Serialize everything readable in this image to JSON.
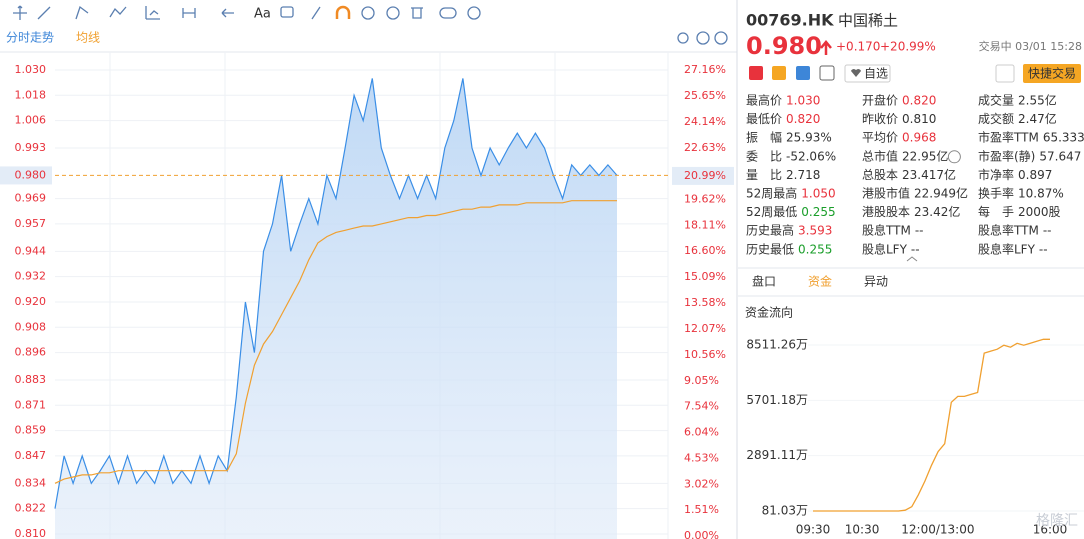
{
  "toolbar": {
    "text_tool": "Aa"
  },
  "tabs": [
    "分时走势",
    "均线"
  ],
  "chart_data": [
    {
      "type": "line",
      "ylim": [
        0.8076,
        1.039
      ],
      "yticks": [
        {
          "value": 1.03,
          "label": "1.030"
        },
        1.018,
        1.006,
        0.993,
        0.969,
        0.957,
        0.944,
        0.932,
        {
          "value": 0.92,
          "label": "0.920"
        },
        0.908,
        0.896,
        0.883,
        0.871,
        0.859,
        0.847,
        0.834,
        0.822,
        {
          "value": 0.81,
          "label": "0.810"
        }
      ],
      "y2lim": [
        -0.17,
        28.27
      ],
      "y2ticks": [
        {
          "value": 27.16,
          "label": "27.16%"
        },
        {
          "value": 25.65,
          "label": "25.65%"
        },
        {
          "value": 24.14,
          "label": "24.14%"
        },
        {
          "value": 22.63,
          "label": "22.63%"
        },
        {
          "value": 19.62,
          "label": "19.62%"
        },
        {
          "value": 18.11,
          "label": "18.11%"
        },
        {
          "value": 16.6,
          "label": "16.60%"
        },
        {
          "value": 15.09,
          "label": "15.09%"
        },
        {
          "value": 13.58,
          "label": "13.58%"
        },
        {
          "value": 12.07,
          "label": "12.07%"
        },
        {
          "value": 10.56,
          "label": "10.56%"
        },
        {
          "value": 9.05,
          "label": "9.05%"
        },
        {
          "value": 7.54,
          "label": "7.54%"
        },
        {
          "value": 6.04,
          "label": "6.04%"
        },
        {
          "value": 4.53,
          "label": "4.53%"
        },
        {
          "value": 3.02,
          "label": "3.02%"
        },
        {
          "value": 1.51,
          "label": "1.51%"
        },
        {
          "value": 0,
          "label": "0.00%"
        }
      ],
      "last": {
        "value": 0.98,
        "label": "0.980"
      },
      "last_pct": {
        "value": 20.99,
        "label": "20.99%"
      },
      "series": [
        {
          "color": "#3a8ee6",
          "values": [
            0.822,
            0.847,
            0.834,
            0.847,
            0.834,
            0.84,
            0.847,
            0.834,
            0.847,
            0.834,
            0.84,
            0.834,
            0.847,
            0.834,
            0.84,
            0.834,
            0.847,
            0.834,
            0.847,
            0.84,
            0.875,
            0.92,
            0.896,
            0.944,
            0.957,
            0.98,
            0.944,
            0.957,
            0.969,
            0.957,
            0.98,
            0.969,
            0.993,
            1.018,
            1.006,
            1.026,
            0.993,
            0.98,
            0.969,
            0.98,
            0.969,
            0.98,
            0.969,
            0.993,
            1.006,
            1.026,
            0.993,
            0.98,
            0.993,
            0.985,
            0.993,
            1.0,
            0.993,
            1.0,
            0.993,
            0.98,
            0.969,
            0.985,
            0.98,
            0.985,
            0.98,
            0.985,
            0.98
          ]
        },
        {
          "color": "#f0a030",
          "values": [
            0.834,
            0.836,
            0.837,
            0.838,
            0.838,
            0.839,
            0.839,
            0.84,
            0.84,
            0.84,
            0.84,
            0.84,
            0.84,
            0.84,
            0.84,
            0.84,
            0.84,
            0.84,
            0.84,
            0.84,
            0.848,
            0.872,
            0.89,
            0.9,
            0.906,
            0.914,
            0.922,
            0.93,
            0.94,
            0.948,
            0.951,
            0.953,
            0.954,
            0.955,
            0.956,
            0.956,
            0.957,
            0.958,
            0.959,
            0.96,
            0.96,
            0.961,
            0.961,
            0.962,
            0.963,
            0.964,
            0.964,
            0.965,
            0.965,
            0.966,
            0.966,
            0.966,
            0.967,
            0.967,
            0.967,
            0.967,
            0.967,
            0.968,
            0.968,
            0.968,
            0.968,
            0.968,
            0.968
          ]
        }
      ]
    },
    {
      "type": "line",
      "title": "资金流向",
      "ylim": [
        -376,
        9273
      ],
      "yticks": [
        {
          "value": 8511.26,
          "label": "8511.26万"
        },
        {
          "value": 5701.18,
          "label": "5701.18万"
        },
        {
          "value": 2891.11,
          "label": "2891.11万"
        },
        {
          "value": 81.03,
          "label": "81.03万"
        }
      ],
      "x_labels": [
        "09:30",
        "10:30",
        "12:00/13:00",
        "16:00"
      ],
      "series": [
        {
          "color": "#f0a030",
          "values": [
            81,
            81,
            81,
            81,
            81,
            81,
            81,
            81,
            81,
            81,
            81,
            81,
            81,
            81,
            120,
            300,
            900,
            1600,
            2400,
            3100,
            3500,
            5600,
            5900,
            5900,
            6000,
            6100,
            8100,
            8200,
            8300,
            8500,
            8400,
            8600,
            8500,
            8600,
            8700,
            8800,
            8800
          ]
        }
      ]
    }
  ],
  "quote": {
    "code": "00769.HK",
    "name": "中国稀土",
    "price": "0.980",
    "change": "+0.170",
    "change_pct": "+20.99%",
    "status": "交易中 03/01 15:28",
    "watch": "自选",
    "trade": "快捷交易"
  },
  "stats": [
    [
      [
        "最高价",
        "1.030"
      ],
      [
        "开盘价",
        "0.820"
      ],
      [
        "成交量",
        "2.55亿"
      ]
    ],
    [
      [
        "最低价",
        "0.820"
      ],
      [
        "昨收价",
        "0.810"
      ],
      [
        "成交额",
        "2.47亿"
      ]
    ],
    [
      [
        "振　幅",
        "25.93%"
      ],
      [
        "平均价",
        "0.968"
      ],
      [
        "市盈率TTM",
        "65.333"
      ]
    ],
    [
      [
        "委　比",
        "-52.06%"
      ],
      [
        "总市值",
        "22.95亿"
      ],
      [
        "市盈率(静)",
        "57.647"
      ]
    ],
    [
      [
        "量　比",
        "2.718"
      ],
      [
        "总股本",
        "23.417亿"
      ],
      [
        "市净率",
        "0.897"
      ]
    ],
    [
      [
        "52周最高",
        "1.050"
      ],
      [
        "港股市值",
        "22.949亿"
      ],
      [
        "换手率",
        "10.87%"
      ]
    ],
    [
      [
        "52周最低",
        "0.255"
      ],
      [
        "港股股本",
        "23.42亿"
      ],
      [
        "每　手",
        "2000股"
      ]
    ],
    [
      [
        "历史最高",
        "3.593"
      ],
      [
        "股息TTM",
        "--"
      ],
      [
        "股息率TTM",
        "--"
      ]
    ],
    [
      [
        "历史最低",
        "0.255"
      ],
      [
        "股息LFY",
        "--"
      ],
      [
        "股息率LFY",
        "--"
      ]
    ]
  ],
  "panel_tabs": [
    "盘口",
    "资金",
    "异动"
  ],
  "watermark": "格隆汇"
}
